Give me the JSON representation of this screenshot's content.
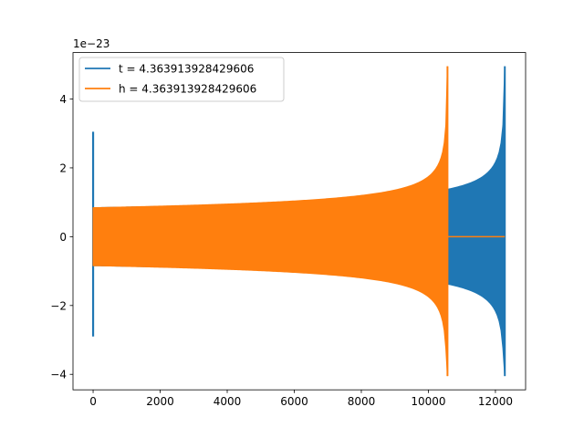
{
  "chart_data": {
    "type": "line",
    "title": "",
    "xlabel": "",
    "ylabel": "",
    "y_offset_text": "1e−23",
    "xlim": [
      -600,
      12900
    ],
    "ylim": [
      -4.45,
      5.35
    ],
    "x_ticks": [
      0,
      2000,
      4000,
      6000,
      8000,
      10000,
      12000
    ],
    "x_tick_labels": [
      "0",
      "2000",
      "4000",
      "6000",
      "8000",
      "10000",
      "12000"
    ],
    "y_ticks": [
      -4,
      -2,
      0,
      2,
      4
    ],
    "y_tick_labels": [
      "−4",
      "−2",
      "0",
      "2",
      "4"
    ],
    "grid": false,
    "legend_position": "top-left",
    "series": [
      {
        "name": "t = 4.363913928429606",
        "color": "#1f77b4",
        "spike": {
          "x": 0,
          "max": 3.05,
          "min": -2.9
        },
        "envelope": {
          "x_start": 0,
          "x_end": 12280,
          "amp_start": 0.84,
          "amp_end_max": 4.95,
          "amp_end_min": -4.05
        }
      },
      {
        "name": "h = 4.363913928429606",
        "color": "#ff7f0e",
        "envelope": {
          "x_start": 0,
          "x_end": 10570,
          "amp_start": 0.84,
          "amp_end_max": 4.95,
          "amp_end_min": -4.05
        },
        "flat_after": {
          "x_start": 10570,
          "x_end": 12280,
          "value": 0
        }
      }
    ]
  }
}
